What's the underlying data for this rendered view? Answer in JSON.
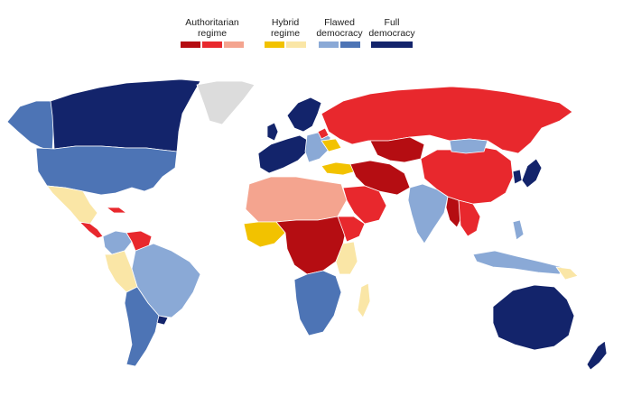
{
  "legend": {
    "authoritarian": {
      "label": "Authoritarian\nregime",
      "colors": [
        "#b50d12",
        "#e8282d",
        "#f4a48f"
      ]
    },
    "hybrid": {
      "label": "Hybrid\nregime",
      "colors": [
        "#f2c200",
        "#fae6a6"
      ]
    },
    "flawed": {
      "label": "Flawed\ndemocracy",
      "colors": [
        "#8aa9d6",
        "#4d74b5"
      ]
    },
    "full": {
      "label": "Full\ndemocracy",
      "colors": [
        "#13246b"
      ]
    }
  },
  "colors": {
    "no_data": "#dcdcdc",
    "border": "#ffffff",
    "ocean": "#ffffff"
  }
}
